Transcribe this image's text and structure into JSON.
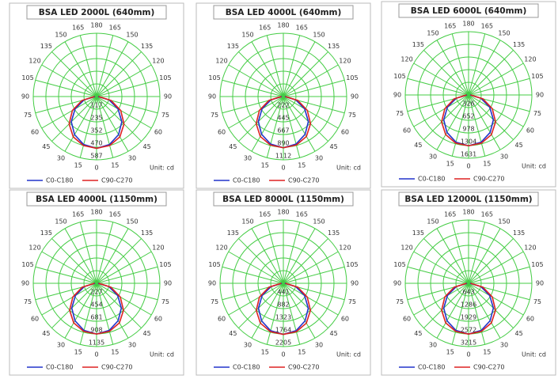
{
  "chart_data": [
    {
      "type": "polar",
      "title": "BSA LED 2000L (640mm)",
      "theta": [
        0,
        15,
        30,
        45,
        60,
        75,
        90
      ],
      "thetaticks": [
        0,
        15,
        30,
        45,
        60,
        75,
        90,
        105,
        120,
        135,
        150,
        165,
        180
      ],
      "rlim": [
        0,
        587
      ],
      "rticks": [
        117,
        235,
        352,
        470,
        587
      ],
      "unit_label": "Unit: cd",
      "grid": true,
      "series": [
        {
          "name": "C0-C180",
          "color": "#2233cc",
          "values": [
            480,
            461,
            408,
            331,
            230,
            120,
            14
          ]
        },
        {
          "name": "C90-C270",
          "color": "#dd2222",
          "values": [
            480,
            470,
            432,
            360,
            259,
            139,
            19
          ]
        }
      ]
    },
    {
      "type": "polar",
      "title": "BSA LED 4000L (640mm)",
      "theta": [
        0,
        15,
        30,
        45,
        60,
        75,
        90
      ],
      "thetaticks": [
        0,
        15,
        30,
        45,
        60,
        75,
        90,
        105,
        120,
        135,
        150,
        165,
        180
      ],
      "rlim": [
        0,
        1112
      ],
      "rticks": [
        222,
        445,
        667,
        890,
        1112
      ],
      "unit_label": "Unit: cd",
      "grid": true,
      "series": [
        {
          "name": "C0-C180",
          "color": "#2233cc",
          "values": [
            900,
            864,
            765,
            621,
            432,
            225,
            27
          ]
        },
        {
          "name": "C90-C270",
          "color": "#dd2222",
          "values": [
            900,
            882,
            810,
            675,
            486,
            261,
            36
          ]
        }
      ]
    },
    {
      "type": "polar",
      "title": "BSA LED 6000L (640mm)",
      "theta": [
        0,
        15,
        30,
        45,
        60,
        75,
        90
      ],
      "thetaticks": [
        0,
        15,
        30,
        45,
        60,
        75,
        90,
        105,
        120,
        135,
        150,
        165,
        180
      ],
      "rlim": [
        0,
        1631
      ],
      "rticks": [
        326,
        652,
        978,
        1304,
        1631
      ],
      "unit_label": "Unit: cd",
      "grid": true,
      "series": [
        {
          "name": "C0-C180",
          "color": "#2233cc",
          "values": [
            1310,
            1258,
            1114,
            904,
            629,
            328,
            39
          ]
        },
        {
          "name": "C90-C270",
          "color": "#dd2222",
          "values": [
            1310,
            1284,
            1179,
            983,
            707,
            380,
            52
          ]
        }
      ]
    },
    {
      "type": "polar",
      "title": "BSA LED 4000L (1150mm)",
      "theta": [
        0,
        15,
        30,
        45,
        60,
        75,
        90
      ],
      "thetaticks": [
        0,
        15,
        30,
        45,
        60,
        75,
        90,
        105,
        120,
        135,
        150,
        165,
        180
      ],
      "rlim": [
        0,
        1135
      ],
      "rticks": [
        227,
        454,
        681,
        908,
        1135
      ],
      "unit_label": "Unit: cd",
      "grid": true,
      "series": [
        {
          "name": "C0-C180",
          "color": "#2233cc",
          "values": [
            910,
            874,
            774,
            628,
            437,
            228,
            27
          ]
        },
        {
          "name": "C90-C270",
          "color": "#dd2222",
          "values": [
            910,
            892,
            819,
            683,
            491,
            264,
            36
          ]
        }
      ]
    },
    {
      "type": "polar",
      "title": "BSA LED 8000L (1150mm)",
      "theta": [
        0,
        15,
        30,
        45,
        60,
        75,
        90
      ],
      "thetaticks": [
        0,
        15,
        30,
        45,
        60,
        75,
        90,
        105,
        120,
        135,
        150,
        165,
        180
      ],
      "rlim": [
        0,
        2205
      ],
      "rticks": [
        441,
        882,
        1323,
        1764,
        2205
      ],
      "unit_label": "Unit: cd",
      "grid": true,
      "series": [
        {
          "name": "C0-C180",
          "color": "#2233cc",
          "values": [
            1780,
            1709,
            1513,
            1228,
            854,
            445,
            53
          ]
        },
        {
          "name": "C90-C270",
          "color": "#dd2222",
          "values": [
            1780,
            1744,
            1602,
            1335,
            961,
            516,
            71
          ]
        }
      ]
    },
    {
      "type": "polar",
      "title": "BSA LED 12000L (1150mm)",
      "theta": [
        0,
        15,
        30,
        45,
        60,
        75,
        90
      ],
      "thetaticks": [
        0,
        15,
        30,
        45,
        60,
        75,
        90,
        105,
        120,
        135,
        150,
        165,
        180
      ],
      "rlim": [
        0,
        3215
      ],
      "rticks": [
        643,
        1286,
        1929,
        2572,
        3215
      ],
      "unit_label": "Unit: cd",
      "grid": true,
      "series": [
        {
          "name": "C0-C180",
          "color": "#2233cc",
          "values": [
            2580,
            2477,
            2193,
            1780,
            1238,
            645,
            77
          ]
        },
        {
          "name": "C90-C270",
          "color": "#dd2222",
          "values": [
            2580,
            2528,
            2322,
            1935,
            1393,
            748,
            103
          ]
        }
      ]
    }
  ]
}
